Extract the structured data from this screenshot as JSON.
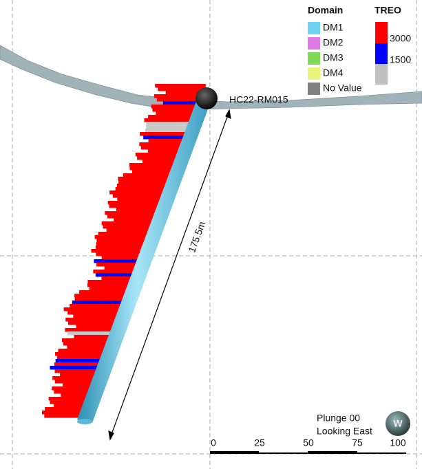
{
  "legend": {
    "domain_title": "Domain",
    "domain_items": [
      "DM1",
      "DM2",
      "DM3",
      "DM4",
      "No Value"
    ],
    "treo_title": "TREO",
    "treo_labels": [
      3000,
      1500
    ]
  },
  "hole": {
    "name": "HC22-RM015",
    "length_label": "175.5m"
  },
  "view": {
    "plunge": "Plunge 00",
    "direction": "Looking East",
    "compass": "W"
  },
  "scale_bar": {
    "labels": [
      0,
      25,
      50,
      75,
      100
    ]
  }
}
